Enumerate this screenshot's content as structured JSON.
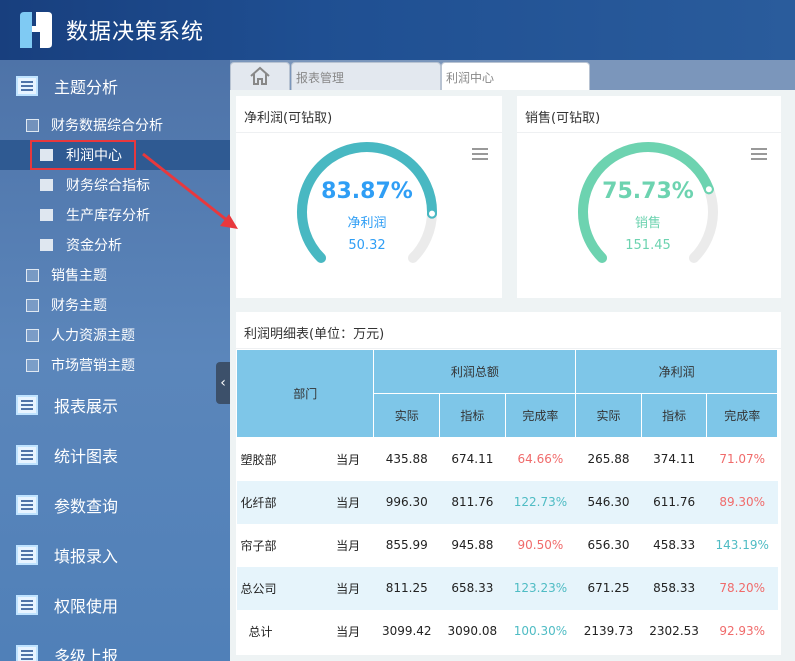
{
  "app": {
    "title": "数据决策系统"
  },
  "sidebar": {
    "top": {
      "label": "主题分析"
    },
    "group": {
      "label": "财务数据综合分析"
    },
    "sub_items": [
      {
        "label": "利润中心",
        "active": true
      },
      {
        "label": "财务综合指标"
      },
      {
        "label": "生产库存分析"
      },
      {
        "label": "资金分析"
      }
    ],
    "themes": [
      {
        "label": "销售主题"
      },
      {
        "label": "财务主题"
      },
      {
        "label": "人力资源主题"
      },
      {
        "label": "市场营销主题"
      }
    ],
    "sections": [
      {
        "label": "报表展示"
      },
      {
        "label": "统计图表"
      },
      {
        "label": "参数查询"
      },
      {
        "label": "填报录入"
      },
      {
        "label": "权限使用"
      },
      {
        "label": "多级上报"
      }
    ],
    "collapse_icon": "chevron-left"
  },
  "tabs": [
    {
      "label": "报表管理"
    },
    {
      "label": "利润中心",
      "active": true
    }
  ],
  "gauges": [
    {
      "title": "净利润(可钻取)",
      "percent_text": "83.87%",
      "percent": 83.87,
      "name": "净利润",
      "value": "50.32",
      "color": "#48b8c2",
      "text_color": "#2f9ef5"
    },
    {
      "title": "销售(可钻取)",
      "percent_text": "75.73%",
      "percent": 75.73,
      "name": "销售",
      "value": "151.45",
      "color": "#6dd3b0",
      "text_color": "#6dd3b0"
    }
  ],
  "table": {
    "title": "利润明细表(单位：万元)",
    "dept_header": "部门",
    "groups": [
      "利润总额",
      "净利润"
    ],
    "sub_headers": [
      "实际",
      "指标",
      "完成率",
      "实际",
      "指标",
      "完成率"
    ],
    "rows": [
      [
        "塑胶部",
        "当月",
        "435.88",
        "674.11",
        "64.66%",
        "265.88",
        "374.11",
        "71.07%"
      ],
      [
        "化纤部",
        "当月",
        "996.30",
        "811.76",
        "122.73%",
        "546.30",
        "611.76",
        "89.30%"
      ],
      [
        "帘子部",
        "当月",
        "855.99",
        "945.88",
        "90.50%",
        "656.30",
        "458.33",
        "143.19%"
      ],
      [
        "总公司",
        "当月",
        "811.25",
        "658.33",
        "123.23%",
        "671.25",
        "858.33",
        "78.20%"
      ],
      [
        "总计",
        "当月",
        "3099.42",
        "3090.08",
        "100.30%",
        "2139.73",
        "2302.53",
        "92.93%"
      ]
    ],
    "colors": {
      "below": "#f06b6b",
      "above": "#4fbcc4"
    }
  }
}
